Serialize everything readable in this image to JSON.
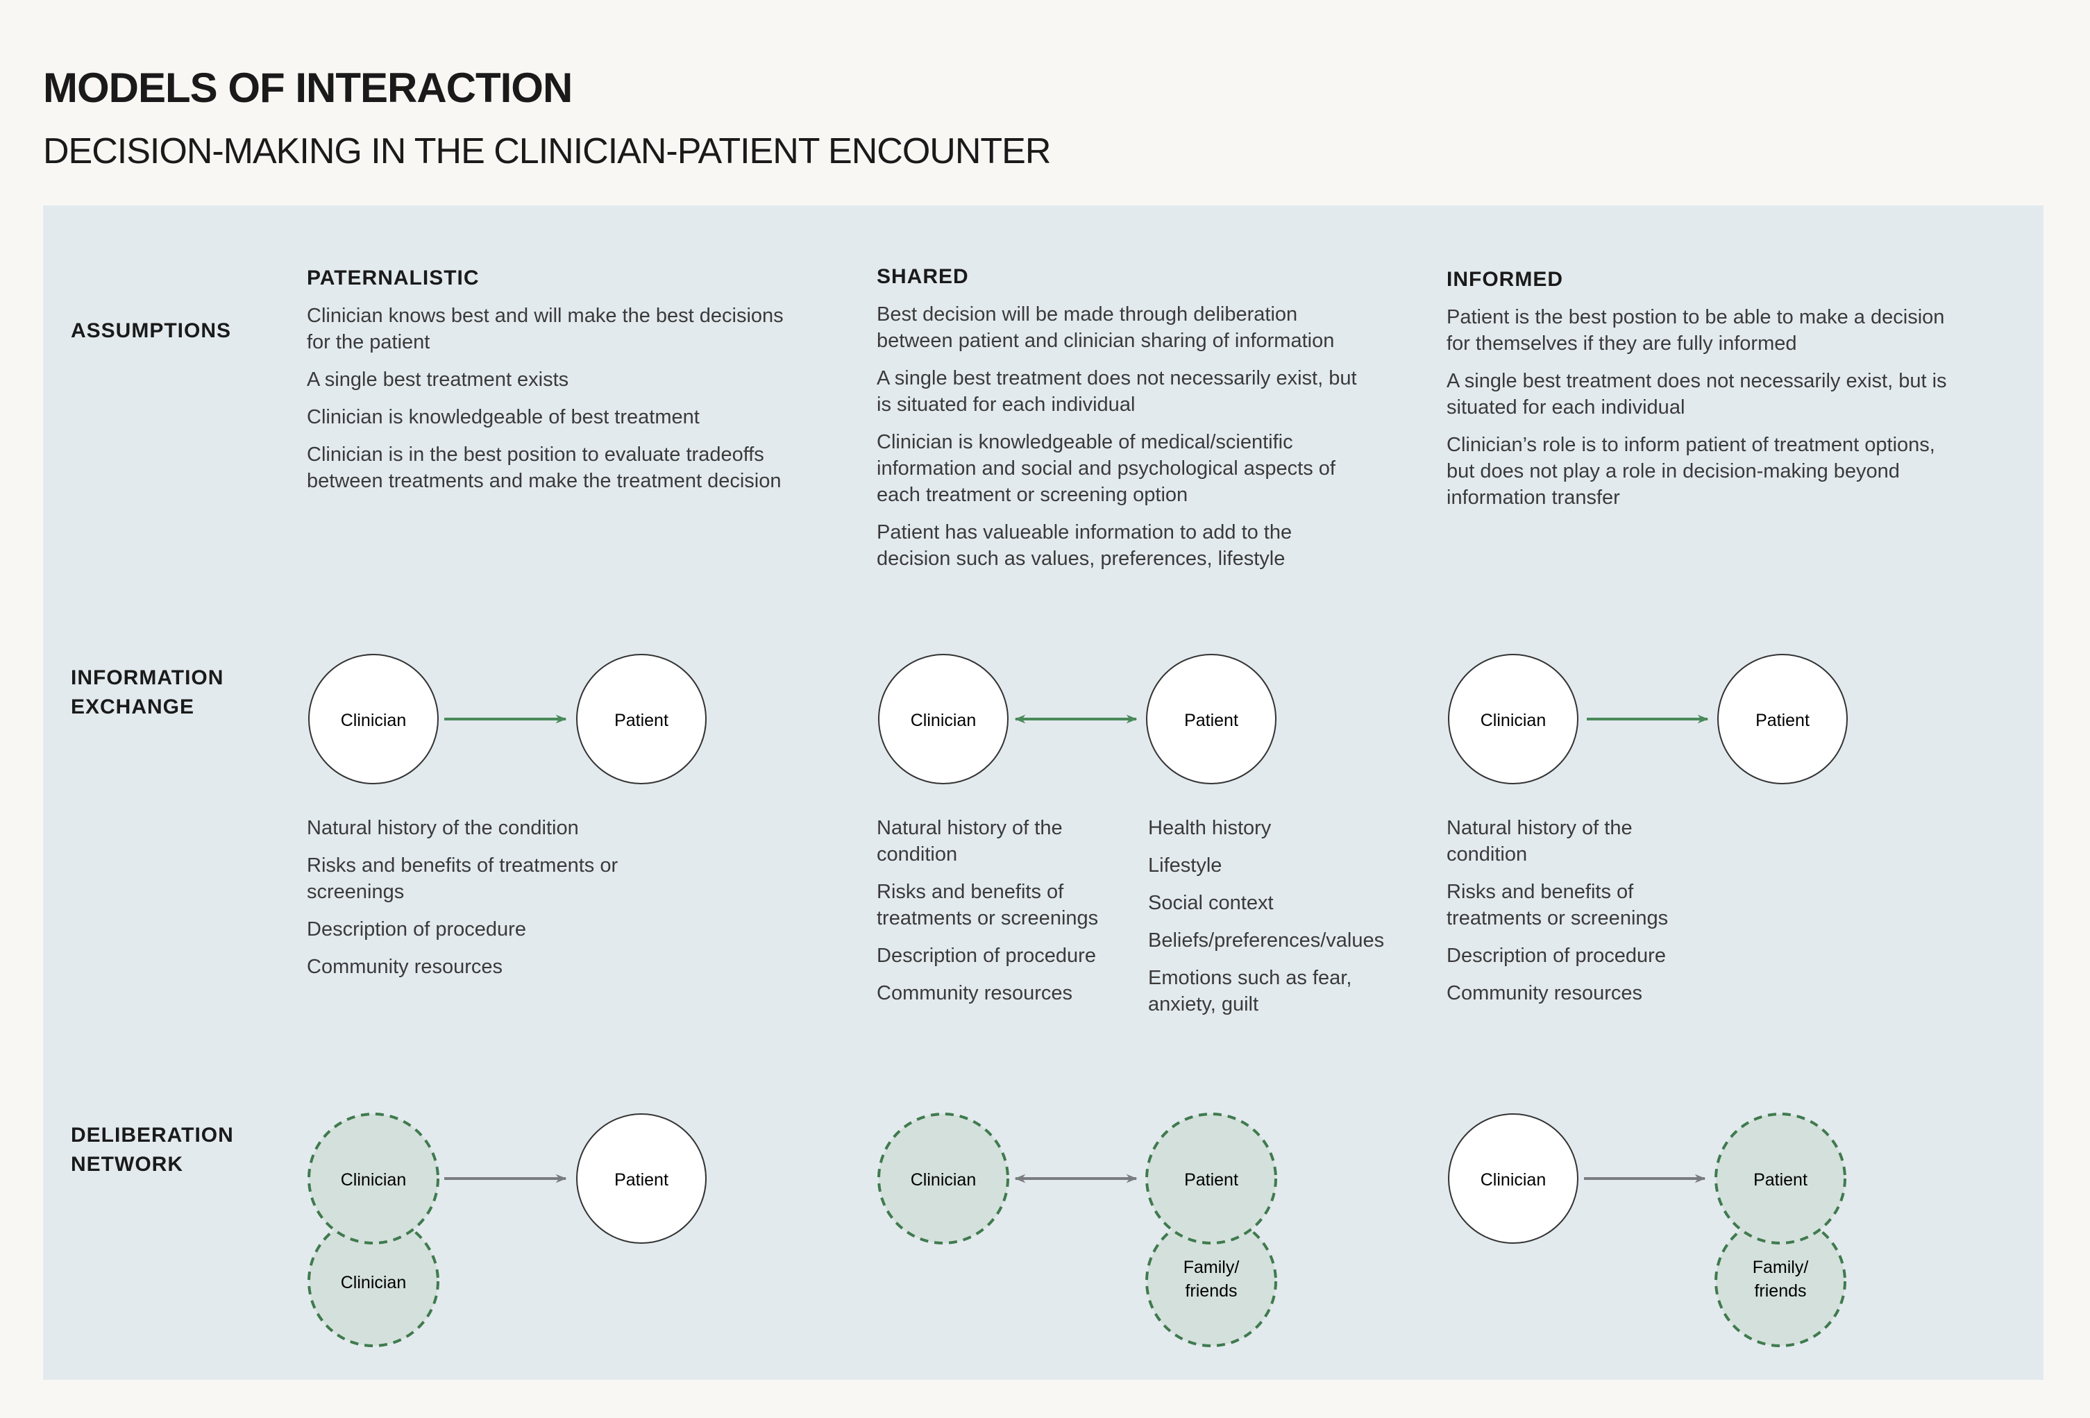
{
  "title": "MODELS OF INTERACTION",
  "subtitle": "DECISION-MAKING IN THE CLINICIAN-PATIENT ENCOUNTER",
  "row_labels": {
    "assumptions": "ASSUMPTIONS",
    "info_line1": "INFORMATION",
    "info_line2": "EXCHANGE",
    "delib_line1": "DELIBERATION",
    "delib_line2": "NETWORK"
  },
  "columns": [
    {
      "heading": "PATERNALISTIC",
      "assumptions": [
        "Clinician knows best and will make the best decisions for the patient",
        "A single best treatment exists",
        "Clinician is knowledgeable of best treatment",
        "Clinician is in the best position to evaluate tradeoffs between treatments and make the treatment decision"
      ],
      "info_items": [
        "Natural history of the condition",
        "Risks and benefits of treatments or screenings",
        "Description of procedure",
        "Community resources"
      ]
    },
    {
      "heading": "SHARED",
      "assumptions": [
        "Best decision will be made through deliberation between patient and clinician sharing of information",
        "A single best treatment does not necessarily exist, but is situated for each individual",
        "Clinician is knowledgeable of medical/scientific information and social and psychological aspects of each treatment or screening option",
        "Patient has valueable information to add to the decision such as values, preferences, lifestyle"
      ],
      "info_items_clinician": [
        "Natural history of the condition",
        "Risks and benefits of treatments or screenings",
        "Description of procedure",
        "Community resources"
      ],
      "info_items_patient": [
        "Health history",
        "Lifestyle",
        "Social context",
        "Beliefs/preferences/values",
        "Emotions such as fear, anxiety, guilt"
      ]
    },
    {
      "heading": "INFORMED",
      "assumptions": [
        "Patient is the best postion to be able to make a decision for themselves if they are fully informed",
        "A single best treatment does not necessarily exist, but is situated for each individual",
        "Clinician’s role is to inform patient of treatment options, but does not play a role in decision-making beyond information transfer"
      ],
      "info_items": [
        "Natural history of the condition",
        "Risks and benefits of treatments or screenings",
        "Description of procedure",
        "Community resources"
      ]
    }
  ],
  "nodes": {
    "clinician": "Clinician",
    "patient": "Patient",
    "family_line1": "Family/",
    "family_line2": "friends"
  },
  "colors": {
    "panel": "#e3eaee",
    "arrow_info": "#4a8a5a",
    "arrow_delib": "#7a7d80",
    "dashed_fill": "#d4e0db",
    "dashed_stroke": "#3f7a4e"
  }
}
